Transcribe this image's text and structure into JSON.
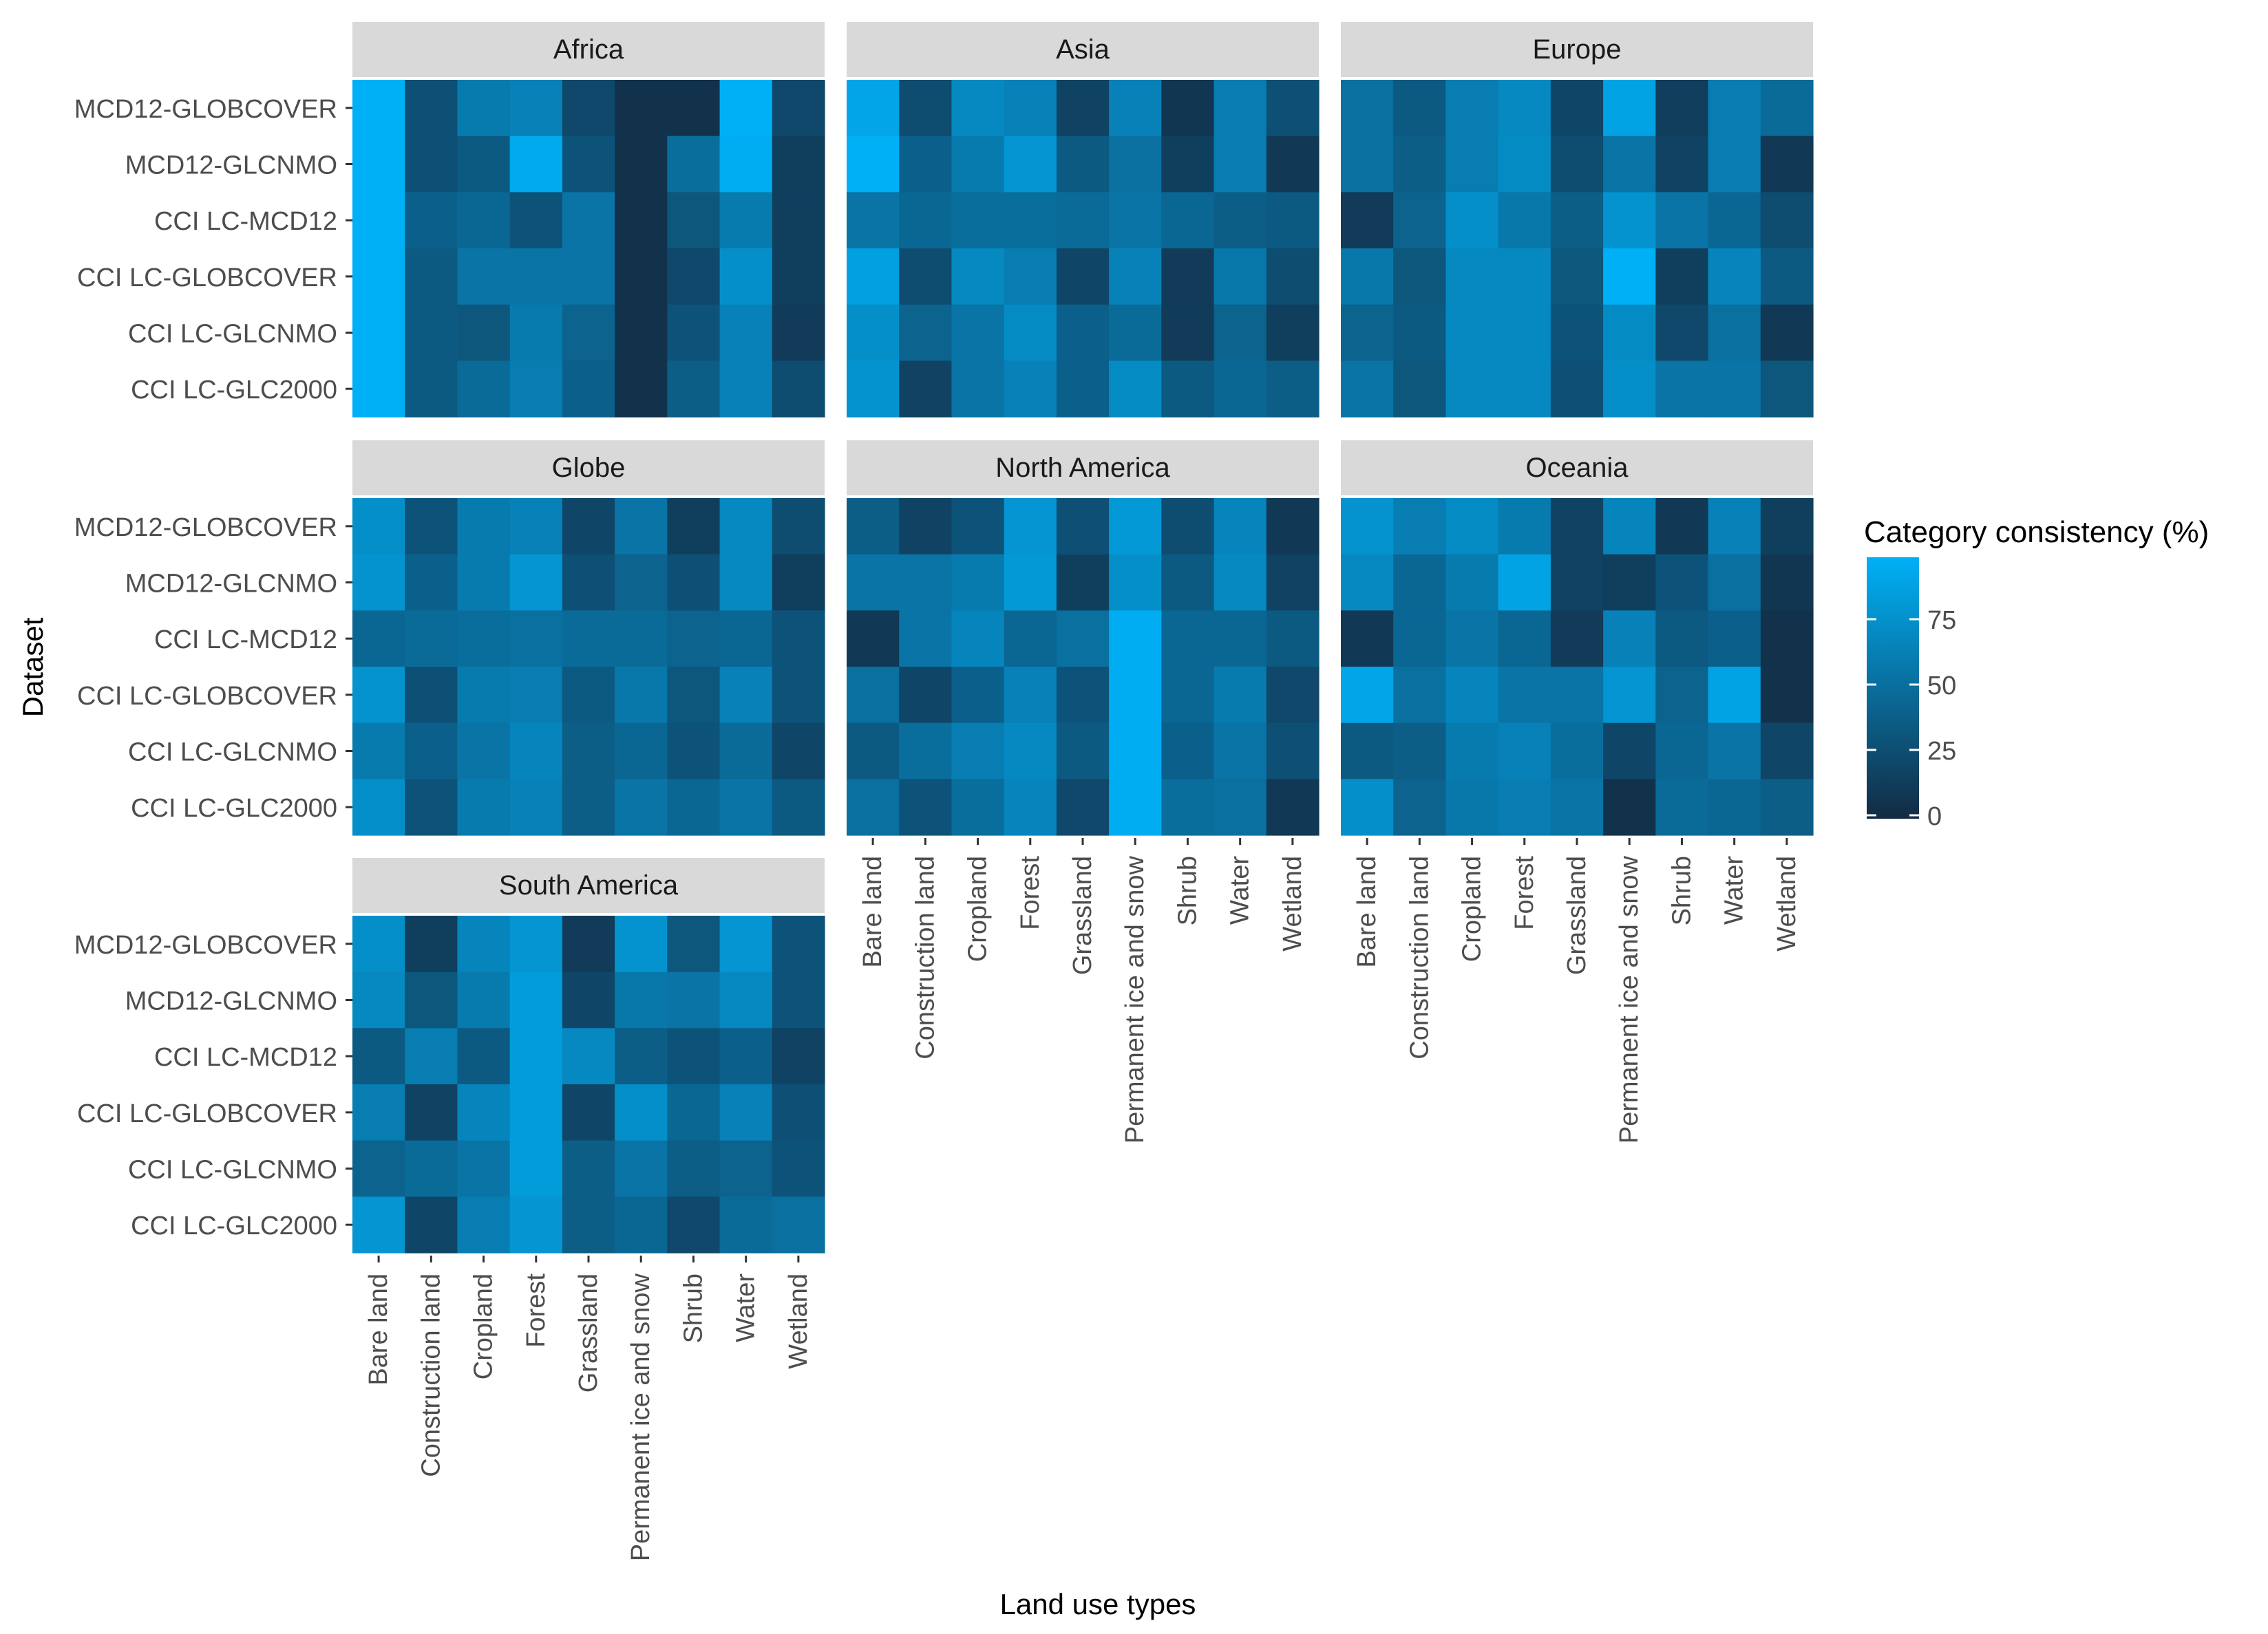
{
  "chart_data": {
    "type": "heatmap",
    "xlabel": "Land use types",
    "ylabel": "Dataset",
    "categories": [
      "Bare land",
      "Construction land",
      "Cropland",
      "Forest",
      "Grassland",
      "Permanent ice and snow",
      "Shrub",
      "Water",
      "Wetland"
    ],
    "datasets": [
      "MCD12-GLOBCOVER",
      "MCD12-GLCNMO",
      "CCI LC-MCD12",
      "CCI LC-GLOBCOVER",
      "CCI LC-GLCNMO",
      "CCI LC-GLC2000"
    ],
    "legend": {
      "title": "Category consistency (%)",
      "ticks": [
        0,
        25,
        50,
        75
      ],
      "range": [
        0,
        100
      ],
      "low_color": "#132B43",
      "high_color": "#00B0F6"
    },
    "panels": [
      {
        "name": "Africa",
        "values": [
          [
            100,
            28,
            60,
            65,
            22,
            5,
            5,
            100,
            22
          ],
          [
            100,
            28,
            35,
            95,
            30,
            5,
            50,
            98,
            15
          ],
          [
            100,
            40,
            45,
            30,
            55,
            5,
            32,
            60,
            15
          ],
          [
            100,
            35,
            55,
            55,
            55,
            5,
            22,
            75,
            15
          ],
          [
            100,
            35,
            32,
            60,
            42,
            5,
            30,
            65,
            12
          ],
          [
            100,
            35,
            48,
            62,
            40,
            5,
            38,
            65,
            25
          ]
        ]
      },
      {
        "name": "Asia",
        "values": [
          [
            92,
            25,
            70,
            65,
            18,
            65,
            8,
            62,
            28
          ],
          [
            100,
            40,
            60,
            80,
            35,
            52,
            15,
            62,
            10
          ],
          [
            55,
            45,
            50,
            50,
            48,
            55,
            45,
            38,
            35
          ],
          [
            88,
            25,
            70,
            62,
            20,
            65,
            12,
            58,
            25
          ],
          [
            75,
            42,
            55,
            72,
            40,
            48,
            12,
            42,
            15
          ],
          [
            78,
            18,
            55,
            65,
            40,
            72,
            35,
            45,
            38
          ]
        ]
      },
      {
        "name": "Europe",
        "values": [
          [
            52,
            35,
            62,
            70,
            20,
            90,
            14,
            62,
            48
          ],
          [
            52,
            38,
            62,
            72,
            25,
            55,
            18,
            62,
            10
          ],
          [
            12,
            42,
            75,
            58,
            38,
            78,
            55,
            45,
            25
          ],
          [
            58,
            32,
            70,
            70,
            32,
            100,
            15,
            68,
            35
          ],
          [
            42,
            35,
            70,
            70,
            30,
            72,
            22,
            52,
            10
          ],
          [
            55,
            32,
            70,
            70,
            28,
            75,
            55,
            55,
            32
          ]
        ]
      },
      {
        "name": "Globe",
        "values": [
          [
            75,
            30,
            60,
            65,
            20,
            55,
            15,
            70,
            25
          ],
          [
            78,
            40,
            60,
            80,
            28,
            42,
            28,
            70,
            15
          ],
          [
            45,
            48,
            50,
            52,
            48,
            48,
            42,
            45,
            30
          ],
          [
            78,
            28,
            60,
            62,
            35,
            58,
            32,
            65,
            30
          ],
          [
            60,
            40,
            55,
            68,
            38,
            45,
            30,
            48,
            20
          ],
          [
            75,
            30,
            60,
            65,
            38,
            55,
            45,
            55,
            35
          ]
        ]
      },
      {
        "name": "North America",
        "values": [
          [
            38,
            18,
            30,
            80,
            28,
            82,
            25,
            68,
            10
          ],
          [
            55,
            55,
            60,
            82,
            15,
            75,
            35,
            70,
            18
          ],
          [
            10,
            55,
            68,
            45,
            52,
            98,
            45,
            45,
            35
          ],
          [
            52,
            20,
            40,
            65,
            30,
            98,
            45,
            60,
            22
          ],
          [
            35,
            50,
            62,
            70,
            35,
            98,
            40,
            55,
            28
          ],
          [
            52,
            30,
            50,
            68,
            22,
            98,
            50,
            52,
            10
          ]
        ]
      },
      {
        "name": "Oceania",
        "values": [
          [
            78,
            62,
            72,
            60,
            18,
            68,
            10,
            65,
            15
          ],
          [
            70,
            45,
            60,
            90,
            18,
            15,
            30,
            52,
            8
          ],
          [
            10,
            45,
            55,
            45,
            12,
            65,
            35,
            40,
            5
          ],
          [
            92,
            52,
            68,
            55,
            55,
            80,
            42,
            90,
            5
          ],
          [
            35,
            38,
            60,
            65,
            50,
            20,
            45,
            55,
            20
          ],
          [
            75,
            42,
            58,
            62,
            55,
            5,
            48,
            45,
            38
          ]
        ]
      },
      {
        "name": "South America",
        "values": [
          [
            75,
            15,
            68,
            80,
            12,
            78,
            32,
            80,
            30
          ],
          [
            70,
            32,
            60,
            85,
            20,
            58,
            55,
            70,
            30
          ],
          [
            35,
            62,
            35,
            85,
            70,
            38,
            30,
            40,
            18
          ],
          [
            62,
            18,
            68,
            85,
            20,
            75,
            45,
            65,
            28
          ],
          [
            42,
            48,
            55,
            85,
            38,
            55,
            38,
            42,
            30
          ],
          [
            80,
            20,
            62,
            80,
            38,
            45,
            22,
            48,
            52
          ]
        ]
      }
    ]
  }
}
